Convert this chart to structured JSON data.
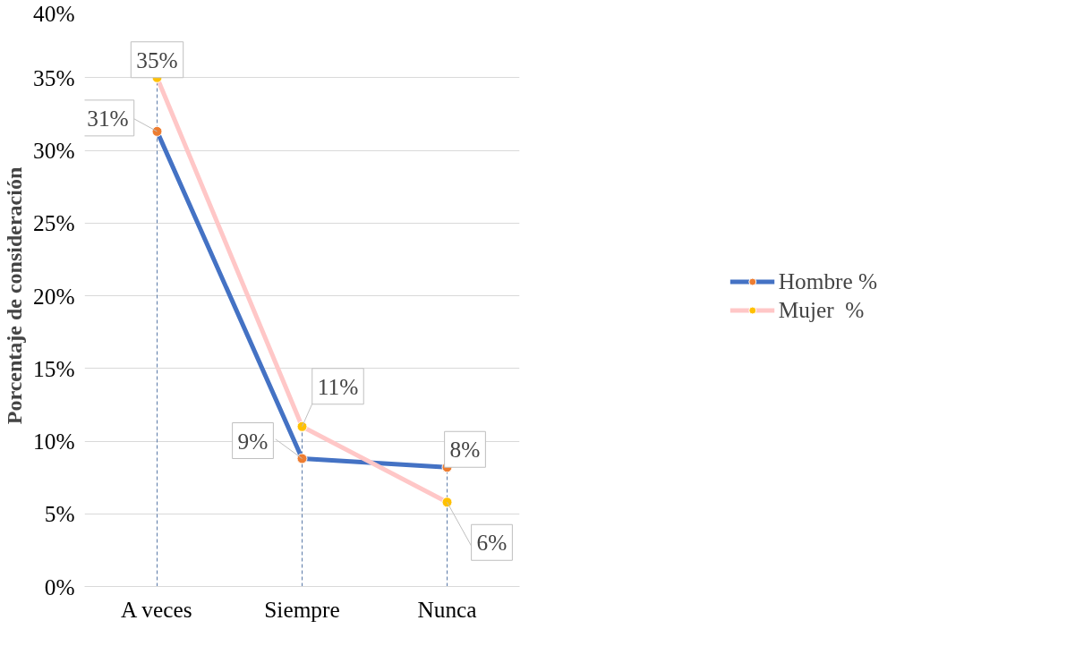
{
  "chart_data": {
    "type": "line",
    "ylabel": "Porcentaje de consideración",
    "categories": [
      "A veces",
      "Siempre",
      "Nunca"
    ],
    "series": [
      {
        "name": "Hombre %",
        "color": "#4472c4",
        "colors": [
          "#ed7d31",
          "#ed7d31",
          "#ed7d31"
        ],
        "values": [
          31.3,
          8.8,
          8.2
        ],
        "value_labels": [
          "31%",
          "9%",
          "8%"
        ]
      },
      {
        "name": "Mujer  %",
        "color": "#ffc7c7",
        "colors": [
          "#ffc000",
          "#ffc000",
          "#ffc000"
        ],
        "values": [
          35,
          11,
          5.8
        ],
        "value_labels": [
          "35%",
          "11%",
          "6%"
        ]
      }
    ],
    "ylim": [
      0,
      40
    ],
    "yticks": [
      {
        "value": 0,
        "label": "0%"
      },
      {
        "value": 5,
        "label": "5%"
      },
      {
        "value": 10,
        "label": "10%"
      },
      {
        "value": 15,
        "label": "15%"
      },
      {
        "value": 20,
        "label": "20%"
      },
      {
        "value": 25,
        "label": "25%"
      },
      {
        "value": 30,
        "label": "30%"
      },
      {
        "value": 35,
        "label": "35%"
      },
      {
        "value": 40,
        "label": "40%"
      }
    ],
    "ref_lines": [
      {
        "axis": "x",
        "value": "A veces",
        "color": "#5b7aa8",
        "line_style": "dashed"
      },
      {
        "axis": "x",
        "value": "Siempre",
        "color": "#5b7aa8",
        "line_style": "dashed"
      },
      {
        "axis": "x",
        "value": "Nunca",
        "color": "#5b7aa8",
        "line_style": "dashed"
      }
    ],
    "grid": "y",
    "legend": "right",
    "marker": "circle",
    "line_style": "solid"
  }
}
